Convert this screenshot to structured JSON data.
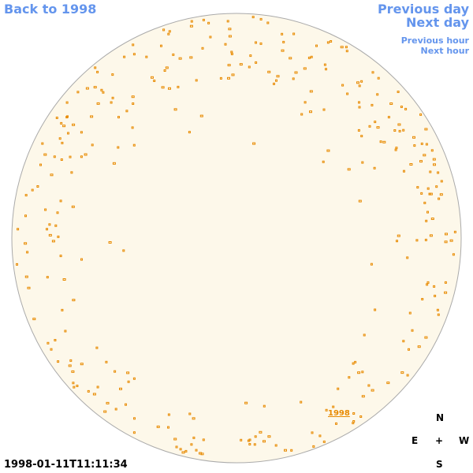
{
  "nav": {
    "back": "Back to 1998",
    "previous_day": "Previous day",
    "next_day": "Next day",
    "previous_hour": "Previous hour",
    "next_hour": "Next hour"
  },
  "disk_label": "1998",
  "timestamp": "1998-01-11T11:11:34",
  "compass": {
    "north": "N",
    "east": "E",
    "center": "+",
    "west": "W",
    "south": "S"
  }
}
